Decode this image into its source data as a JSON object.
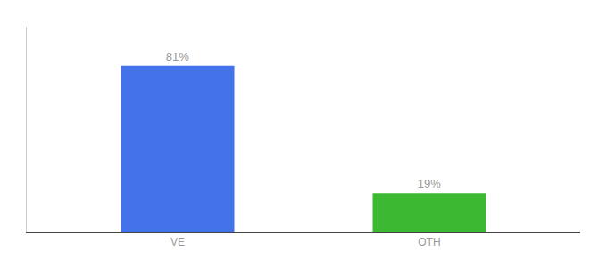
{
  "chart_data": {
    "type": "bar",
    "categories": [
      "VE",
      "OTH"
    ],
    "values": [
      81,
      19
    ],
    "value_labels": [
      "81%",
      "19%"
    ],
    "colors": [
      "#4472e8",
      "#3cb832"
    ],
    "ylim": [
      0,
      100
    ],
    "data_labels": true,
    "tick_labels": "x",
    "grid": false
  }
}
